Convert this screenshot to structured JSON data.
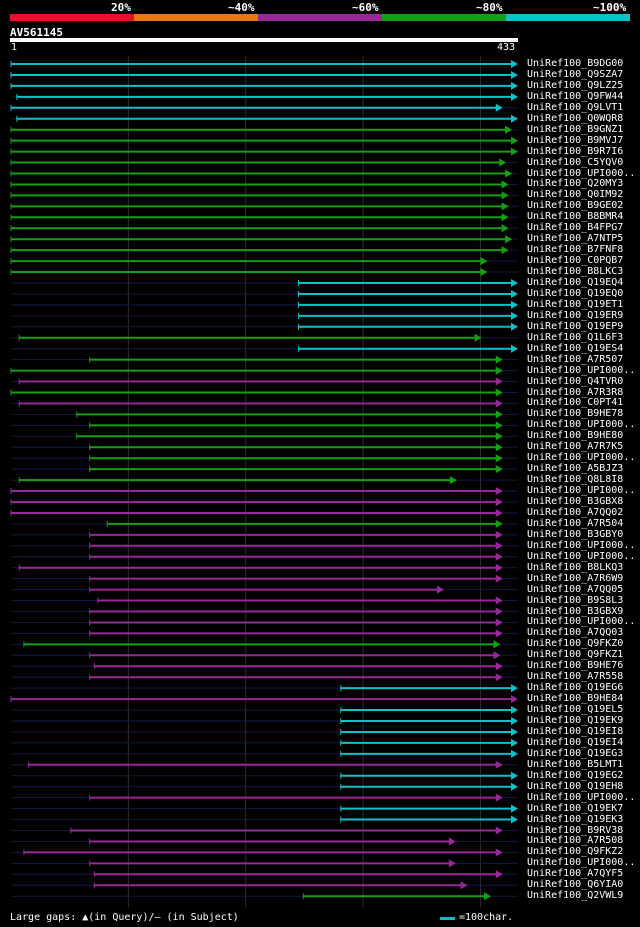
{
  "legend": {
    "labels": [
      "20%",
      "~40%",
      "~60%",
      "~80%",
      "~100%"
    ],
    "colors": [
      "#e8102a",
      "#e87814",
      "#982898",
      "#14a014",
      "#10c0c8"
    ]
  },
  "query": {
    "id": "AV561145",
    "start": "1",
    "end": "433",
    "length": 433
  },
  "footer": {
    "gaps_text": "Large gaps: ▲(in Query)/– (in Subject)",
    "scale_text": "=100char."
  },
  "hits": [
    {
      "label": "UniRef100_B9DG00",
      "color": "cyan",
      "start": 1,
      "end": 433
    },
    {
      "label": "UniRef100_Q9SZA7",
      "color": "cyan",
      "start": 1,
      "end": 433
    },
    {
      "label": "UniRef100_Q9LZ25",
      "color": "cyan",
      "start": 1,
      "end": 433
    },
    {
      "label": "UniRef100_Q9FW44",
      "color": "cyan",
      "start": 6,
      "end": 433
    },
    {
      "label": "UniRef100_Q9LVT1",
      "color": "cyan",
      "start": 1,
      "end": 420
    },
    {
      "label": "UniRef100_Q0WQR8",
      "color": "cyan",
      "start": 6,
      "end": 433
    },
    {
      "label": "UniRef100_B9GNZ1",
      "color": "green",
      "start": 1,
      "end": 428
    },
    {
      "label": "UniRef100_B9MVJ7",
      "color": "green",
      "start": 1,
      "end": 433
    },
    {
      "label": "UniRef100_B9R7I6",
      "color": "green",
      "start": 1,
      "end": 433
    },
    {
      "label": "UniRef100_C5YQV0",
      "color": "green",
      "start": 1,
      "end": 423
    },
    {
      "label": "UniRef100_UPI000..",
      "color": "green",
      "start": 1,
      "end": 428
    },
    {
      "label": "UniRef100_Q20MY3",
      "color": "green",
      "start": 1,
      "end": 425
    },
    {
      "label": "UniRef100_Q0IM92",
      "color": "green",
      "start": 1,
      "end": 425
    },
    {
      "label": "UniRef100_B9GE02",
      "color": "green",
      "start": 1,
      "end": 425
    },
    {
      "label": "UniRef100_B8BMR4",
      "color": "green",
      "start": 1,
      "end": 425
    },
    {
      "label": "UniRef100_B4FPG7",
      "color": "green",
      "start": 1,
      "end": 425
    },
    {
      "label": "UniRef100_A7NTP5",
      "color": "green",
      "start": 1,
      "end": 428
    },
    {
      "label": "UniRef100_B7FNF8",
      "color": "green",
      "start": 1,
      "end": 425
    },
    {
      "label": "UniRef100_C0PQB7",
      "color": "green",
      "start": 1,
      "end": 407
    },
    {
      "label": "UniRef100_B8LKC3",
      "color": "green",
      "start": 1,
      "end": 407
    },
    {
      "label": "UniRef100_Q19EQ4",
      "color": "cyan",
      "start": 246,
      "end": 433
    },
    {
      "label": "UniRef100_Q19EQ0",
      "color": "cyan",
      "start": 246,
      "end": 433
    },
    {
      "label": "UniRef100_Q19ET1",
      "color": "cyan",
      "start": 246,
      "end": 433
    },
    {
      "label": "UniRef100_Q19ER9",
      "color": "cyan",
      "start": 246,
      "end": 433
    },
    {
      "label": "UniRef100_Q19EP9",
      "color": "cyan",
      "start": 246,
      "end": 433
    },
    {
      "label": "UniRef100_Q1L6F3",
      "color": "green",
      "start": 8,
      "end": 402
    },
    {
      "label": "UniRef100_Q19ES4",
      "color": "cyan",
      "start": 246,
      "end": 433
    },
    {
      "label": "UniRef100_A7R507",
      "color": "green",
      "start": 68,
      "end": 420
    },
    {
      "label": "UniRef100_UPI000..",
      "color": "green",
      "start": 1,
      "end": 420
    },
    {
      "label": "UniRef100_Q4TVR0",
      "color": "purple",
      "start": 8,
      "end": 420
    },
    {
      "label": "UniRef100_A7R3R8",
      "color": "green",
      "start": 1,
      "end": 420
    },
    {
      "label": "UniRef100_C0PT41",
      "color": "purple",
      "start": 8,
      "end": 420
    },
    {
      "label": "UniRef100_B9HE78",
      "color": "green",
      "start": 57,
      "end": 420
    },
    {
      "label": "UniRef100_UPI000..",
      "color": "green",
      "start": 68,
      "end": 420
    },
    {
      "label": "UniRef100_B9HE80",
      "color": "green",
      "start": 57,
      "end": 420
    },
    {
      "label": "UniRef100_A7R7K5",
      "color": "green",
      "start": 68,
      "end": 420
    },
    {
      "label": "UniRef100_UPI000..",
      "color": "green",
      "start": 68,
      "end": 420
    },
    {
      "label": "UniRef100_A5BJZ3",
      "color": "green",
      "start": 68,
      "end": 420
    },
    {
      "label": "UniRef100_Q8L8I8",
      "color": "green",
      "start": 8,
      "end": 381
    },
    {
      "label": "UniRef100_UPI000..",
      "color": "purple",
      "start": 1,
      "end": 420
    },
    {
      "label": "UniRef100_B3GBX8",
      "color": "purple",
      "start": 1,
      "end": 420
    },
    {
      "label": "UniRef100_A7QQ02",
      "color": "purple",
      "start": 1,
      "end": 420
    },
    {
      "label": "UniRef100_A7R504",
      "color": "green",
      "start": 83,
      "end": 420
    },
    {
      "label": "UniRef100_B3GBY0",
      "color": "purple",
      "start": 68,
      "end": 420
    },
    {
      "label": "UniRef100_UPI000..",
      "color": "purple",
      "start": 68,
      "end": 420
    },
    {
      "label": "UniRef100_UPI000..",
      "color": "purple",
      "start": 68,
      "end": 420
    },
    {
      "label": "UniRef100_B8LKQ3",
      "color": "purple",
      "start": 8,
      "end": 420
    },
    {
      "label": "UniRef100_A7R6W9",
      "color": "purple",
      "start": 68,
      "end": 420
    },
    {
      "label": "UniRef100_A7QQ05",
      "color": "purple",
      "start": 68,
      "end": 370
    },
    {
      "label": "UniRef100_B9S8L3",
      "color": "purple",
      "start": 75,
      "end": 420
    },
    {
      "label": "UniRef100_B3GBX9",
      "color": "purple",
      "start": 68,
      "end": 420
    },
    {
      "label": "UniRef100_UPI000..",
      "color": "purple",
      "start": 68,
      "end": 420
    },
    {
      "label": "UniRef100_A7QQ03",
      "color": "purple",
      "start": 68,
      "end": 420
    },
    {
      "label": "UniRef100_Q9FKZ0",
      "color": "green",
      "start": 12,
      "end": 418
    },
    {
      "label": "UniRef100_Q9FKZ1",
      "color": "purple",
      "start": 68,
      "end": 418
    },
    {
      "label": "UniRef100_B9HE76",
      "color": "purple",
      "start": 72,
      "end": 420
    },
    {
      "label": "UniRef100_A7R558",
      "color": "purple",
      "start": 68,
      "end": 420
    },
    {
      "label": "UniRef100_Q19EG6",
      "color": "cyan",
      "start": 282,
      "end": 433
    },
    {
      "label": "UniRef100_B9HE84",
      "color": "purple",
      "start": 1,
      "end": 433
    },
    {
      "label": "UniRef100_Q19EL5",
      "color": "cyan",
      "start": 282,
      "end": 433
    },
    {
      "label": "UniRef100_Q19EK9",
      "color": "cyan",
      "start": 282,
      "end": 433
    },
    {
      "label": "UniRef100_Q19EI8",
      "color": "cyan",
      "start": 282,
      "end": 433
    },
    {
      "label": "UniRef100_Q19EI4",
      "color": "cyan",
      "start": 282,
      "end": 433
    },
    {
      "label": "UniRef100_Q19EG3",
      "color": "cyan",
      "start": 282,
      "end": 433
    },
    {
      "label": "UniRef100_B5LMT1",
      "color": "purple",
      "start": 16,
      "end": 420
    },
    {
      "label": "UniRef100_Q19EG2",
      "color": "cyan",
      "start": 282,
      "end": 433
    },
    {
      "label": "UniRef100_Q19EH8",
      "color": "cyan",
      "start": 282,
      "end": 433
    },
    {
      "label": "UniRef100_UPI000..",
      "color": "purple",
      "start": 68,
      "end": 420
    },
    {
      "label": "UniRef100_Q19EK7",
      "color": "cyan",
      "start": 282,
      "end": 433
    },
    {
      "label": "UniRef100_Q19EK3",
      "color": "cyan",
      "start": 282,
      "end": 433
    },
    {
      "label": "UniRef100_B9RV38",
      "color": "purple",
      "start": 52,
      "end": 420
    },
    {
      "label": "UniRef100_A7R508",
      "color": "purple",
      "start": 68,
      "end": 380
    },
    {
      "label": "UniRef100_Q9FKZ2",
      "color": "purple",
      "start": 12,
      "end": 420
    },
    {
      "label": "UniRef100_UPI000..",
      "color": "purple",
      "start": 68,
      "end": 380
    },
    {
      "label": "UniRef100_A7QYF5",
      "color": "purple",
      "start": 72,
      "end": 420
    },
    {
      "label": "UniRef100_Q6YIA0",
      "color": "purple",
      "start": 72,
      "end": 390
    },
    {
      "label": "UniRef100_Q2VWL9",
      "color": "green",
      "start": 250,
      "end": 410
    }
  ]
}
